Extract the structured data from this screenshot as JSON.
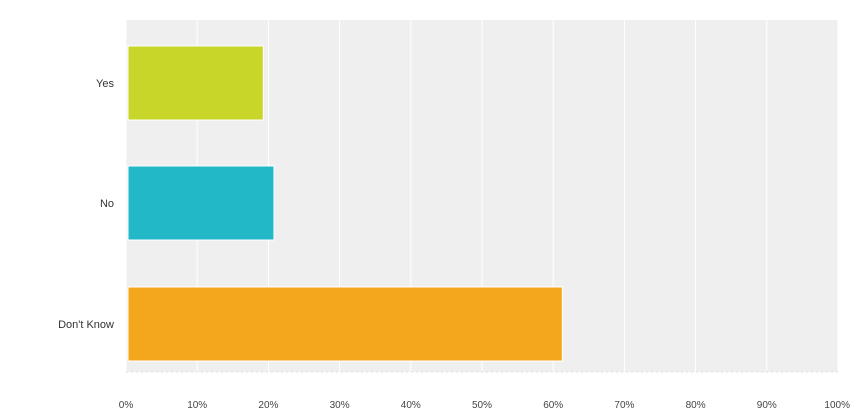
{
  "chart_data": {
    "type": "bar",
    "orientation": "horizontal",
    "categories": [
      "Yes",
      "No",
      "Don't Know"
    ],
    "values": [
      19,
      20.5,
      61
    ],
    "colors": [
      "#c7d629",
      "#23b8c8",
      "#f4a71d"
    ],
    "xlim": [
      0,
      100
    ],
    "xticks": [
      "0%",
      "10%",
      "20%",
      "30%",
      "40%",
      "50%",
      "60%",
      "70%",
      "80%",
      "90%",
      "100%"
    ],
    "grid": true,
    "legend": "none",
    "plot_background": "#efefef"
  }
}
